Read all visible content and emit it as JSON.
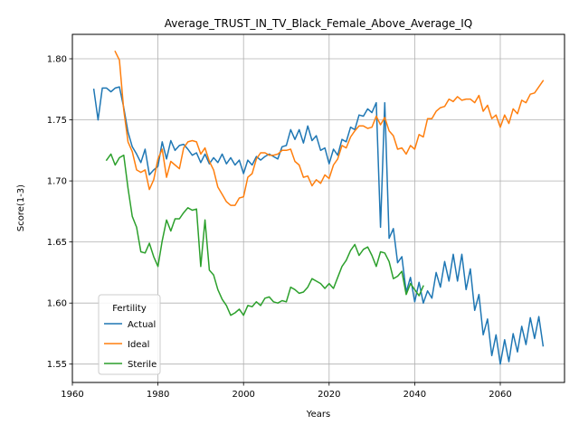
{
  "chart_data": {
    "type": "line",
    "title": "Average_TRUST_IN_TV_Black_Female_Above_Average_IQ",
    "xlabel": "Years",
    "ylabel": "Score(1-3)",
    "xlim": [
      1960,
      2075
    ],
    "ylim": [
      1.535,
      1.82
    ],
    "xticks": [
      1960,
      1980,
      2000,
      2020,
      2040,
      2060
    ],
    "yticks": [
      1.55,
      1.6,
      1.65,
      1.7,
      1.75,
      1.8
    ],
    "xtick_labels": [
      "1960",
      "1980",
      "2000",
      "2020",
      "2040",
      "2060"
    ],
    "ytick_labels": [
      "1.55",
      "1.60",
      "1.65",
      "1.70",
      "1.75",
      "1.80"
    ],
    "grid": true,
    "legend": {
      "title": "Fertility",
      "placement": "lower-left"
    },
    "series": [
      {
        "name": "Actual",
        "color": "#1f77b4",
        "x": [
          1965,
          1966,
          1967,
          1968,
          1969,
          1970,
          1971,
          1972,
          1973,
          1974,
          1975,
          1976,
          1977,
          1978,
          1979,
          1980,
          1981,
          1982,
          1983,
          1984,
          1985,
          1986,
          1987,
          1988,
          1989,
          1990,
          1991,
          1992,
          1993,
          1994,
          1995,
          1996,
          1997,
          1998,
          1999,
          2000,
          2001,
          2002,
          2003,
          2004,
          2005,
          2006,
          2007,
          2008,
          2009,
          2010,
          2011,
          2012,
          2013,
          2014,
          2015,
          2016,
          2017,
          2018,
          2019,
          2020,
          2021,
          2022,
          2023,
          2024,
          2025,
          2026,
          2027,
          2028,
          2029,
          2030,
          2031,
          2032,
          2033,
          2034,
          2035,
          2036,
          2037,
          2038,
          2039,
          2040,
          2041,
          2042,
          2043,
          2044,
          2045,
          2046,
          2047,
          2048,
          2049,
          2050,
          2051,
          2052,
          2053,
          2054,
          2055,
          2056,
          2057,
          2058,
          2059,
          2060,
          2061,
          2062,
          2063,
          2064,
          2065,
          2066,
          2067,
          2068,
          2069,
          2070
        ],
        "y": [
          1.775,
          1.75,
          1.776,
          1.776,
          1.773,
          1.776,
          1.777,
          1.76,
          1.74,
          1.728,
          1.722,
          1.715,
          1.726,
          1.705,
          1.709,
          1.712,
          1.732,
          1.718,
          1.733,
          1.725,
          1.729,
          1.73,
          1.726,
          1.721,
          1.723,
          1.715,
          1.722,
          1.714,
          1.719,
          1.715,
          1.722,
          1.714,
          1.719,
          1.713,
          1.717,
          1.706,
          1.717,
          1.713,
          1.72,
          1.717,
          1.72,
          1.722,
          1.72,
          1.718,
          1.728,
          1.729,
          1.742,
          1.734,
          1.742,
          1.731,
          1.745,
          1.733,
          1.737,
          1.725,
          1.727,
          1.714,
          1.726,
          1.721,
          1.734,
          1.732,
          1.744,
          1.742,
          1.754,
          1.753,
          1.759,
          1.756,
          1.764,
          1.662,
          1.764,
          1.653,
          1.661,
          1.633,
          1.638,
          1.609,
          1.621,
          1.601,
          1.617,
          1.6,
          1.61,
          1.604,
          1.625,
          1.613,
          1.634,
          1.618,
          1.64,
          1.618,
          1.64,
          1.611,
          1.628,
          1.594,
          1.607,
          1.574,
          1.587,
          1.557,
          1.574,
          1.55,
          1.57,
          1.552,
          1.575,
          1.56,
          1.581,
          1.566,
          1.588,
          1.571,
          1.589,
          1.565
        ]
      },
      {
        "name": "Ideal",
        "color": "#ff7f0e",
        "x": [
          1970,
          1971,
          1972,
          1973,
          1974,
          1975,
          1976,
          1977,
          1978,
          1979,
          1980,
          1981,
          1982,
          1983,
          1984,
          1985,
          1986,
          1987,
          1988,
          1989,
          1990,
          1991,
          1992,
          1993,
          1994,
          1995,
          1996,
          1997,
          1998,
          1999,
          2000,
          2001,
          2002,
          2003,
          2004,
          2005,
          2006,
          2007,
          2008,
          2009,
          2010,
          2011,
          2012,
          2013,
          2014,
          2015,
          2016,
          2017,
          2018,
          2019,
          2020,
          2021,
          2022,
          2023,
          2024,
          2025,
          2026,
          2027,
          2028,
          2029,
          2030,
          2031,
          2032,
          2033,
          2034,
          2035,
          2036,
          2037,
          2038,
          2039,
          2040,
          2041,
          2042,
          2043,
          2044,
          2045,
          2046,
          2047,
          2048,
          2049,
          2050,
          2051,
          2052,
          2053,
          2054,
          2055,
          2056,
          2057,
          2058,
          2059,
          2060,
          2061,
          2062,
          2063,
          2064,
          2065,
          2066,
          2067,
          2068,
          2069,
          2070
        ],
        "y": [
          1.806,
          1.799,
          1.758,
          1.732,
          1.724,
          1.709,
          1.707,
          1.709,
          1.693,
          1.701,
          1.718,
          1.726,
          1.703,
          1.716,
          1.713,
          1.71,
          1.727,
          1.732,
          1.733,
          1.732,
          1.722,
          1.727,
          1.716,
          1.709,
          1.695,
          1.689,
          1.683,
          1.68,
          1.68,
          1.686,
          1.687,
          1.703,
          1.706,
          1.718,
          1.723,
          1.723,
          1.721,
          1.721,
          1.722,
          1.725,
          1.725,
          1.726,
          1.716,
          1.713,
          1.703,
          1.704,
          1.696,
          1.701,
          1.698,
          1.705,
          1.702,
          1.713,
          1.718,
          1.729,
          1.727,
          1.736,
          1.741,
          1.745,
          1.745,
          1.743,
          1.744,
          1.753,
          1.746,
          1.752,
          1.741,
          1.737,
          1.726,
          1.727,
          1.722,
          1.729,
          1.726,
          1.738,
          1.736,
          1.751,
          1.751,
          1.757,
          1.76,
          1.761,
          1.767,
          1.765,
          1.769,
          1.766,
          1.767,
          1.767,
          1.764,
          1.77,
          1.757,
          1.762,
          1.751,
          1.754,
          1.744,
          1.754,
          1.747,
          1.759,
          1.755,
          1.766,
          1.764,
          1.771,
          1.772,
          1.777,
          1.782
        ]
      },
      {
        "name": "Sterile",
        "color": "#2ca02c",
        "x": [
          1968,
          1969,
          1970,
          1971,
          1972,
          1973,
          1974,
          1975,
          1976,
          1977,
          1978,
          1979,
          1980,
          1981,
          1982,
          1983,
          1984,
          1985,
          1986,
          1987,
          1988,
          1989,
          1990,
          1991,
          1992,
          1993,
          1994,
          1995,
          1996,
          1997,
          1998,
          1999,
          2000,
          2001,
          2002,
          2003,
          2004,
          2005,
          2006,
          2007,
          2008,
          2009,
          2010,
          2011,
          2012,
          2013,
          2014,
          2015,
          2016,
          2017,
          2018,
          2019,
          2020,
          2021,
          2022,
          2023,
          2024,
          2025,
          2026,
          2027,
          2028,
          2029,
          2030,
          2031,
          2032,
          2033,
          2034,
          2035,
          2036,
          2037,
          2038,
          2039,
          2040,
          2041,
          2042
        ],
        "y": [
          1.717,
          1.722,
          1.713,
          1.719,
          1.721,
          1.694,
          1.671,
          1.662,
          1.642,
          1.641,
          1.649,
          1.638,
          1.63,
          1.651,
          1.668,
          1.659,
          1.669,
          1.669,
          1.674,
          1.678,
          1.676,
          1.677,
          1.63,
          1.668,
          1.627,
          1.623,
          1.611,
          1.603,
          1.598,
          1.59,
          1.592,
          1.595,
          1.59,
          1.598,
          1.597,
          1.601,
          1.598,
          1.604,
          1.605,
          1.601,
          1.6,
          1.602,
          1.601,
          1.613,
          1.611,
          1.608,
          1.609,
          1.613,
          1.62,
          1.618,
          1.616,
          1.612,
          1.616,
          1.612,
          1.621,
          1.63,
          1.635,
          1.643,
          1.648,
          1.639,
          1.644,
          1.646,
          1.639,
          1.63,
          1.642,
          1.641,
          1.634,
          1.62,
          1.622,
          1.626,
          1.607,
          1.616,
          1.611,
          1.606,
          1.614
        ]
      }
    ]
  }
}
